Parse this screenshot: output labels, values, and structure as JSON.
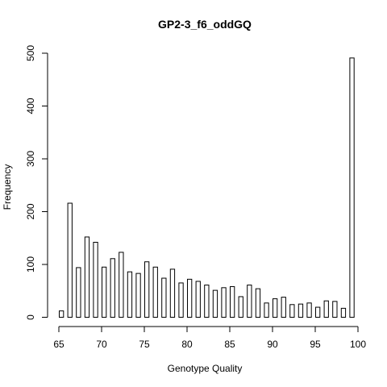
{
  "chart_data": {
    "type": "bar",
    "title": "GP2-3_f6_oddGQ",
    "xlabel": "Genotype Quality",
    "ylabel": "Frequency",
    "xlim": [
      65,
      100
    ],
    "ylim": [
      0,
      500
    ],
    "x_ticks": [
      65,
      70,
      75,
      80,
      85,
      90,
      95,
      100
    ],
    "y_ticks": [
      0,
      100,
      200,
      300,
      400,
      500
    ],
    "bin_width": 0.5,
    "bins": [
      {
        "x": 65,
        "value": 12
      },
      {
        "x": 66,
        "value": 216
      },
      {
        "x": 67,
        "value": 94
      },
      {
        "x": 68,
        "value": 152
      },
      {
        "x": 69,
        "value": 142
      },
      {
        "x": 70,
        "value": 95
      },
      {
        "x": 71,
        "value": 111
      },
      {
        "x": 72,
        "value": 123
      },
      {
        "x": 73,
        "value": 86
      },
      {
        "x": 74,
        "value": 83
      },
      {
        "x": 75,
        "value": 105
      },
      {
        "x": 76,
        "value": 95
      },
      {
        "x": 77,
        "value": 74
      },
      {
        "x": 78,
        "value": 91
      },
      {
        "x": 79,
        "value": 65
      },
      {
        "x": 80,
        "value": 72
      },
      {
        "x": 81,
        "value": 68
      },
      {
        "x": 82,
        "value": 61
      },
      {
        "x": 83,
        "value": 51
      },
      {
        "x": 84,
        "value": 56
      },
      {
        "x": 85,
        "value": 58
      },
      {
        "x": 86,
        "value": 39
      },
      {
        "x": 87,
        "value": 61
      },
      {
        "x": 88,
        "value": 54
      },
      {
        "x": 89,
        "value": 27
      },
      {
        "x": 90,
        "value": 35
      },
      {
        "x": 91,
        "value": 38
      },
      {
        "x": 92,
        "value": 24
      },
      {
        "x": 93,
        "value": 25
      },
      {
        "x": 94,
        "value": 27
      },
      {
        "x": 95,
        "value": 19
      },
      {
        "x": 96,
        "value": 31
      },
      {
        "x": 97,
        "value": 30
      },
      {
        "x": 98,
        "value": 17
      },
      {
        "x": 99,
        "value": 491
      }
    ],
    "grid": false,
    "legend": "none"
  }
}
